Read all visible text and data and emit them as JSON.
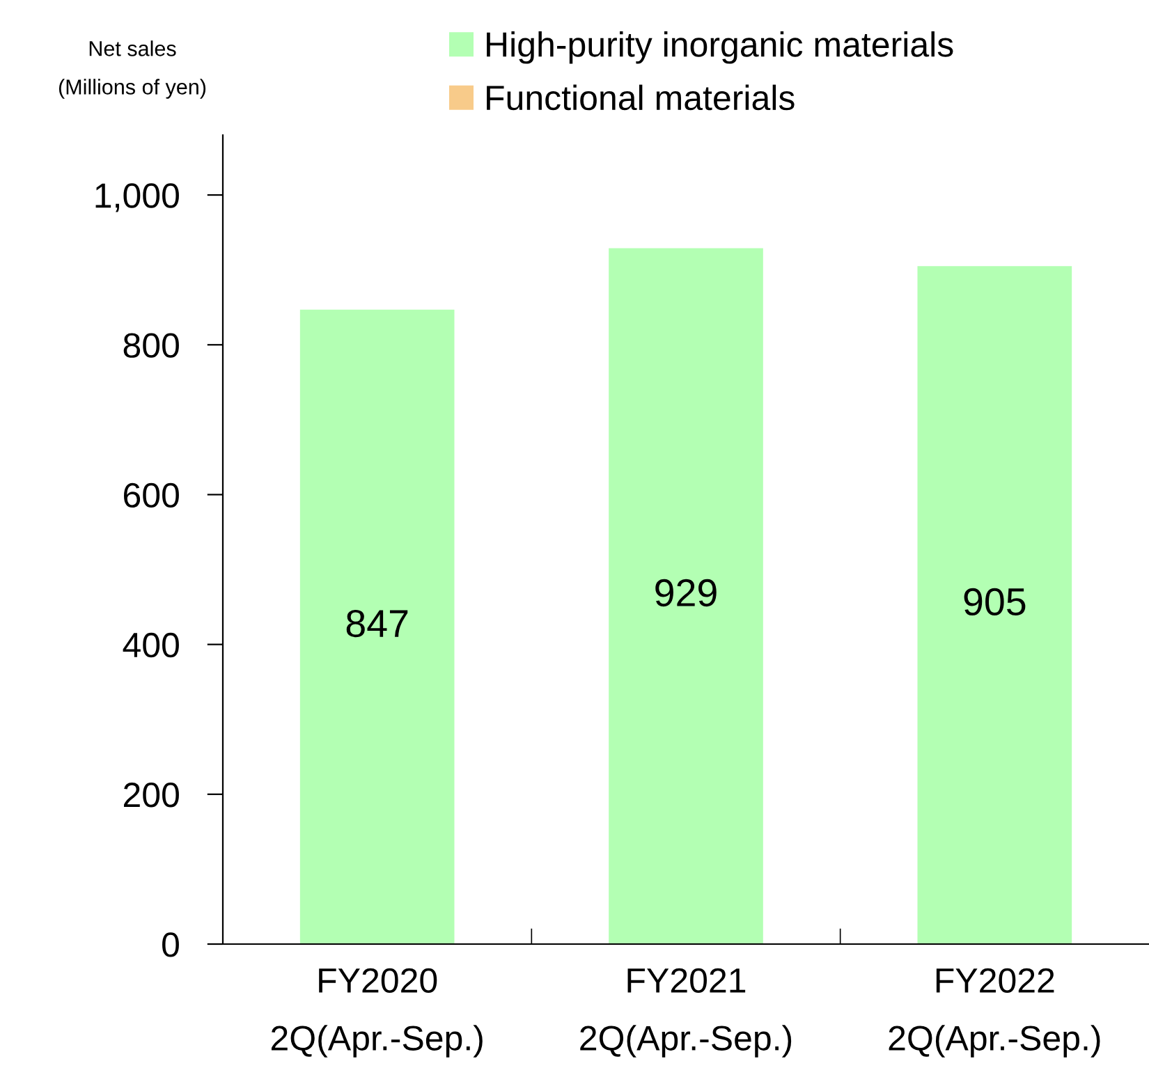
{
  "chart_data": {
    "type": "bar",
    "ylabel": "Net sales\n(Millions of yen)",
    "categories": [
      "FY2020\n2Q(Apr.-Sep.)",
      "FY2021\n2Q(Apr.-Sep.)",
      "FY2022\n2Q(Apr.-Sep.)"
    ],
    "series": [
      {
        "name": "High-purity inorganic materials",
        "color": "#b3ffb3",
        "values": [
          847,
          929,
          905
        ]
      },
      {
        "name": "Functional materials",
        "color": "#f8cb8a",
        "values": [
          null,
          null,
          null
        ]
      }
    ],
    "ylim": [
      0,
      1080
    ],
    "yticks": [
      0,
      200,
      400,
      600,
      800,
      {
        "value": 1000,
        "label": "1,000"
      }
    ],
    "data_labels": true,
    "legend": "top",
    "grid": false
  }
}
